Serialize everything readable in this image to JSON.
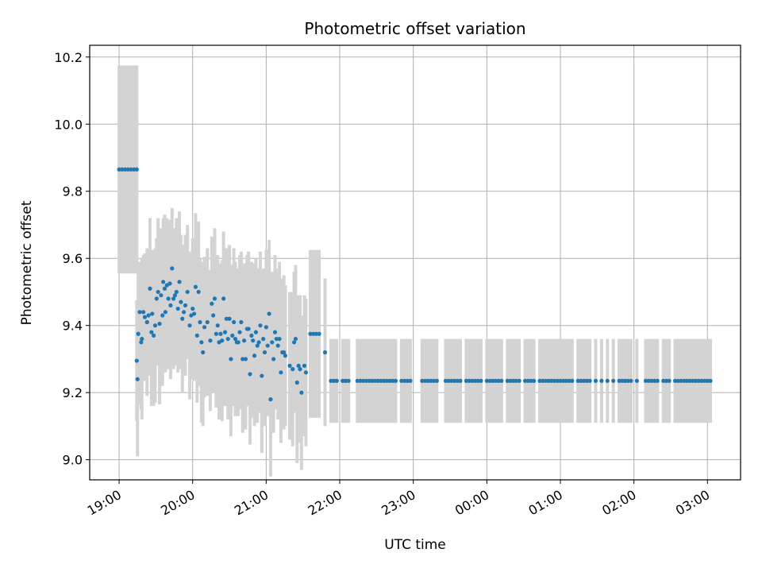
{
  "chart_data": {
    "type": "scatter",
    "title": "Photometric offset variation",
    "xlabel": "UTC time",
    "ylabel": "Photometric offset",
    "xlim": [
      -0.4,
      8.45
    ],
    "ylim": [
      8.94,
      10.235
    ],
    "x_unit": "hours after 19:00 UTC",
    "x_ticks": [
      {
        "value": 0,
        "label": "19:00"
      },
      {
        "value": 1,
        "label": "20:00"
      },
      {
        "value": 2,
        "label": "21:00"
      },
      {
        "value": 3,
        "label": "22:00"
      },
      {
        "value": 4,
        "label": "23:00"
      },
      {
        "value": 5,
        "label": "00:00"
      },
      {
        "value": 6,
        "label": "01:00"
      },
      {
        "value": 7,
        "label": "02:00"
      },
      {
        "value": 8,
        "label": "03:00"
      }
    ],
    "y_ticks": [
      {
        "value": 9.0,
        "label": "9.0"
      },
      {
        "value": 9.2,
        "label": "9.2"
      },
      {
        "value": 9.4,
        "label": "9.4"
      },
      {
        "value": 9.6,
        "label": "9.6"
      },
      {
        "value": 9.8,
        "label": "9.8"
      },
      {
        "value": 10.0,
        "label": "10.0"
      },
      {
        "value": 10.2,
        "label": "10.2"
      }
    ],
    "grid": true,
    "colors": {
      "point": "#1f77b4",
      "errorbar": "#d3d3d3",
      "grid": "#b0b0b0"
    },
    "series": [
      {
        "name": "",
        "points": [
          [
            0.0,
            9.865,
            0.31
          ],
          [
            0.04,
            9.865,
            0.31
          ],
          [
            0.08,
            9.865,
            0.31
          ],
          [
            0.12,
            9.865,
            0.31
          ],
          [
            0.16,
            9.865,
            0.31
          ],
          [
            0.2,
            9.865,
            0.31
          ],
          [
            0.24,
            9.865,
            0.31
          ],
          [
            0.24,
            9.295,
            0.18
          ],
          [
            0.25,
            9.24,
            0.23
          ],
          [
            0.26,
            9.375,
            0.21
          ],
          [
            0.28,
            9.44,
            0.15
          ],
          [
            0.3,
            9.35,
            0.2
          ],
          [
            0.31,
            9.36,
            0.24
          ],
          [
            0.33,
            9.44,
            0.17
          ],
          [
            0.35,
            9.425,
            0.19
          ],
          [
            0.38,
            9.41,
            0.22
          ],
          [
            0.4,
            9.43,
            0.18
          ],
          [
            0.42,
            9.51,
            0.21
          ],
          [
            0.44,
            9.38,
            0.22
          ],
          [
            0.45,
            9.435,
            0.19
          ],
          [
            0.47,
            9.37,
            0.21
          ],
          [
            0.49,
            9.4,
            0.23
          ],
          [
            0.51,
            9.48,
            0.18
          ],
          [
            0.53,
            9.5,
            0.22
          ],
          [
            0.55,
            9.405,
            0.24
          ],
          [
            0.57,
            9.49,
            0.2
          ],
          [
            0.59,
            9.43,
            0.21
          ],
          [
            0.6,
            9.53,
            0.19
          ],
          [
            0.62,
            9.51,
            0.22
          ],
          [
            0.63,
            9.44,
            0.18
          ],
          [
            0.65,
            9.52,
            0.2
          ],
          [
            0.67,
            9.48,
            0.21
          ],
          [
            0.69,
            9.525,
            0.19
          ],
          [
            0.7,
            9.46,
            0.22
          ],
          [
            0.72,
            9.57,
            0.18
          ],
          [
            0.74,
            9.48,
            0.21
          ],
          [
            0.76,
            9.49,
            0.2
          ],
          [
            0.78,
            9.5,
            0.22
          ],
          [
            0.8,
            9.45,
            0.19
          ],
          [
            0.82,
            9.53,
            0.21
          ],
          [
            0.84,
            9.47,
            0.2
          ],
          [
            0.86,
            9.42,
            0.22
          ],
          [
            0.88,
            9.44,
            0.18
          ],
          [
            0.9,
            9.46,
            0.21
          ],
          [
            0.93,
            9.5,
            0.2
          ],
          [
            0.96,
            9.4,
            0.22
          ],
          [
            0.98,
            9.43,
            0.19
          ],
          [
            1.0,
            9.45,
            0.21
          ],
          [
            1.02,
            9.435,
            0.2
          ],
          [
            1.04,
            9.515,
            0.22
          ],
          [
            1.06,
            9.37,
            0.2
          ],
          [
            1.08,
            9.5,
            0.21
          ],
          [
            1.1,
            9.41,
            0.19
          ],
          [
            1.12,
            9.35,
            0.24
          ],
          [
            1.14,
            9.32,
            0.22
          ],
          [
            1.16,
            9.395,
            0.21
          ],
          [
            1.2,
            9.41,
            0.22
          ],
          [
            1.24,
            9.355,
            0.21
          ],
          [
            1.26,
            9.465,
            0.2
          ],
          [
            1.28,
            9.43,
            0.23
          ],
          [
            1.3,
            9.48,
            0.21
          ],
          [
            1.32,
            9.375,
            0.22
          ],
          [
            1.34,
            9.4,
            0.21
          ],
          [
            1.36,
            9.35,
            0.23
          ],
          [
            1.38,
            9.375,
            0.21
          ],
          [
            1.4,
            9.355,
            0.24
          ],
          [
            1.42,
            9.48,
            0.2
          ],
          [
            1.44,
            9.38,
            0.22
          ],
          [
            1.46,
            9.42,
            0.21
          ],
          [
            1.48,
            9.36,
            0.24
          ],
          [
            1.5,
            9.42,
            0.22
          ],
          [
            1.52,
            9.3,
            0.23
          ],
          [
            1.54,
            9.37,
            0.21
          ],
          [
            1.56,
            9.41,
            0.22
          ],
          [
            1.58,
            9.36,
            0.23
          ],
          [
            1.6,
            9.35,
            0.21
          ],
          [
            1.62,
            9.35,
            0.22
          ],
          [
            1.64,
            9.38,
            0.23
          ],
          [
            1.66,
            9.41,
            0.21
          ],
          [
            1.68,
            9.3,
            0.22
          ],
          [
            1.7,
            9.355,
            0.23
          ],
          [
            1.72,
            9.3,
            0.21
          ],
          [
            1.74,
            9.39,
            0.22
          ],
          [
            1.76,
            9.39,
            0.23
          ],
          [
            1.78,
            9.255,
            0.21
          ],
          [
            1.8,
            9.37,
            0.22
          ],
          [
            1.82,
            9.355,
            0.23
          ],
          [
            1.84,
            9.31,
            0.21
          ],
          [
            1.86,
            9.38,
            0.22
          ],
          [
            1.88,
            9.34,
            0.23
          ],
          [
            1.9,
            9.35,
            0.21
          ],
          [
            1.92,
            9.4,
            0.22
          ],
          [
            1.94,
            9.25,
            0.23
          ],
          [
            1.96,
            9.36,
            0.21
          ],
          [
            1.98,
            9.32,
            0.22
          ],
          [
            2.0,
            9.395,
            0.23
          ],
          [
            2.02,
            9.34,
            0.21
          ],
          [
            2.04,
            9.435,
            0.22
          ],
          [
            2.06,
            9.18,
            0.23
          ],
          [
            2.08,
            9.35,
            0.21
          ],
          [
            2.1,
            9.3,
            0.22
          ],
          [
            2.12,
            9.38,
            0.23
          ],
          [
            2.14,
            9.36,
            0.21
          ],
          [
            2.16,
            9.34,
            0.22
          ],
          [
            2.18,
            9.36,
            0.23
          ],
          [
            2.2,
            9.26,
            0.21
          ],
          [
            2.22,
            9.32,
            0.22
          ],
          [
            2.24,
            9.32,
            0.23
          ],
          [
            2.26,
            9.31,
            0.21
          ],
          [
            2.32,
            9.28,
            0.22
          ],
          [
            2.36,
            9.27,
            0.23
          ],
          [
            2.38,
            9.35,
            0.21
          ],
          [
            2.4,
            9.36,
            0.22
          ],
          [
            2.42,
            9.23,
            0.24
          ],
          [
            2.44,
            9.28,
            0.21
          ],
          [
            2.46,
            9.27,
            0.22
          ],
          [
            2.48,
            9.2,
            0.23
          ],
          [
            2.52,
            9.28,
            0.21
          ],
          [
            2.54,
            9.26,
            0.22
          ],
          [
            2.6,
            9.375,
            0.25
          ],
          [
            2.64,
            9.375,
            0.25
          ],
          [
            2.68,
            9.375,
            0.25
          ],
          [
            2.72,
            9.375,
            0.25
          ],
          [
            2.8,
            9.32,
            0.22
          ],
          [
            2.88,
            9.235,
            0.125
          ],
          [
            2.92,
            9.235,
            0.125
          ],
          [
            2.96,
            9.235,
            0.125
          ],
          [
            3.04,
            9.235,
            0.125
          ],
          [
            3.08,
            9.235,
            0.125
          ],
          [
            3.12,
            9.235,
            0.125
          ],
          [
            3.24,
            9.235,
            0.125
          ],
          [
            3.28,
            9.235,
            0.125
          ],
          [
            3.32,
            9.235,
            0.125
          ],
          [
            3.36,
            9.235,
            0.125
          ],
          [
            3.4,
            9.235,
            0.125
          ],
          [
            3.44,
            9.235,
            0.125
          ],
          [
            3.48,
            9.235,
            0.125
          ],
          [
            3.52,
            9.235,
            0.125
          ],
          [
            3.56,
            9.235,
            0.125
          ],
          [
            3.6,
            9.235,
            0.125
          ],
          [
            3.64,
            9.235,
            0.125
          ],
          [
            3.68,
            9.235,
            0.125
          ],
          [
            3.72,
            9.235,
            0.125
          ],
          [
            3.76,
            9.235,
            0.125
          ],
          [
            3.84,
            9.235,
            0.125
          ],
          [
            3.88,
            9.235,
            0.125
          ],
          [
            3.92,
            9.235,
            0.125
          ],
          [
            3.96,
            9.235,
            0.125
          ],
          [
            4.12,
            9.235,
            0.125
          ],
          [
            4.16,
            9.235,
            0.125
          ],
          [
            4.2,
            9.235,
            0.125
          ],
          [
            4.24,
            9.235,
            0.125
          ],
          [
            4.28,
            9.235,
            0.125
          ],
          [
            4.32,
            9.235,
            0.125
          ],
          [
            4.44,
            9.235,
            0.125
          ],
          [
            4.48,
            9.235,
            0.125
          ],
          [
            4.52,
            9.235,
            0.125
          ],
          [
            4.56,
            9.235,
            0.125
          ],
          [
            4.6,
            9.235,
            0.125
          ],
          [
            4.64,
            9.235,
            0.125
          ],
          [
            4.72,
            9.235,
            0.125
          ],
          [
            4.76,
            9.235,
            0.125
          ],
          [
            4.8,
            9.235,
            0.125
          ],
          [
            4.84,
            9.235,
            0.125
          ],
          [
            4.88,
            9.235,
            0.125
          ],
          [
            4.92,
            9.235,
            0.125
          ],
          [
            5.0,
            9.235,
            0.125
          ],
          [
            5.04,
            9.235,
            0.125
          ],
          [
            5.08,
            9.235,
            0.125
          ],
          [
            5.12,
            9.235,
            0.125
          ],
          [
            5.16,
            9.235,
            0.125
          ],
          [
            5.2,
            9.235,
            0.125
          ],
          [
            5.28,
            9.235,
            0.125
          ],
          [
            5.32,
            9.235,
            0.125
          ],
          [
            5.36,
            9.235,
            0.125
          ],
          [
            5.4,
            9.235,
            0.125
          ],
          [
            5.44,
            9.235,
            0.125
          ],
          [
            5.52,
            9.235,
            0.125
          ],
          [
            5.56,
            9.235,
            0.125
          ],
          [
            5.6,
            9.235,
            0.125
          ],
          [
            5.64,
            9.235,
            0.125
          ],
          [
            5.72,
            9.235,
            0.125
          ],
          [
            5.76,
            9.235,
            0.125
          ],
          [
            5.8,
            9.235,
            0.125
          ],
          [
            5.84,
            9.235,
            0.125
          ],
          [
            5.88,
            9.235,
            0.125
          ],
          [
            5.92,
            9.235,
            0.125
          ],
          [
            5.96,
            9.235,
            0.125
          ],
          [
            6.0,
            9.235,
            0.125
          ],
          [
            6.04,
            9.235,
            0.125
          ],
          [
            6.08,
            9.235,
            0.125
          ],
          [
            6.12,
            9.235,
            0.125
          ],
          [
            6.16,
            9.235,
            0.125
          ],
          [
            6.24,
            9.235,
            0.125
          ],
          [
            6.28,
            9.235,
            0.125
          ],
          [
            6.32,
            9.235,
            0.125
          ],
          [
            6.36,
            9.235,
            0.125
          ],
          [
            6.4,
            9.235,
            0.125
          ],
          [
            6.48,
            9.235,
            0.125
          ],
          [
            6.56,
            9.235,
            0.125
          ],
          [
            6.64,
            9.235,
            0.125
          ],
          [
            6.72,
            9.235,
            0.125
          ],
          [
            6.8,
            9.235,
            0.125
          ],
          [
            6.84,
            9.235,
            0.125
          ],
          [
            6.88,
            9.235,
            0.125
          ],
          [
            6.92,
            9.235,
            0.125
          ],
          [
            6.96,
            9.235,
            0.125
          ],
          [
            7.04,
            9.235,
            0.125
          ],
          [
            7.16,
            9.235,
            0.125
          ],
          [
            7.2,
            9.235,
            0.125
          ],
          [
            7.24,
            9.235,
            0.125
          ],
          [
            7.28,
            9.235,
            0.125
          ],
          [
            7.32,
            9.235,
            0.125
          ],
          [
            7.4,
            9.235,
            0.125
          ],
          [
            7.44,
            9.235,
            0.125
          ],
          [
            7.48,
            9.235,
            0.125
          ],
          [
            7.56,
            9.235,
            0.125
          ],
          [
            7.6,
            9.235,
            0.125
          ],
          [
            7.64,
            9.235,
            0.125
          ],
          [
            7.68,
            9.235,
            0.125
          ],
          [
            7.72,
            9.235,
            0.125
          ],
          [
            7.76,
            9.235,
            0.125
          ],
          [
            7.8,
            9.235,
            0.125
          ],
          [
            7.84,
            9.235,
            0.125
          ],
          [
            7.88,
            9.235,
            0.125
          ],
          [
            7.92,
            9.235,
            0.125
          ],
          [
            7.96,
            9.235,
            0.125
          ],
          [
            8.0,
            9.235,
            0.125
          ],
          [
            8.04,
            9.235,
            0.125
          ]
        ]
      }
    ]
  }
}
